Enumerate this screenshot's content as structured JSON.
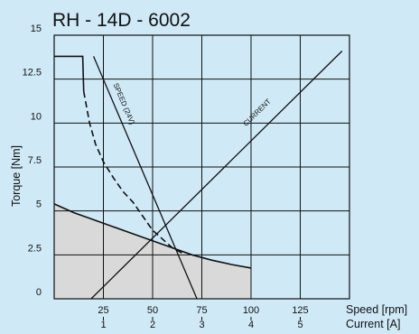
{
  "chart_data": {
    "type": "line",
    "title": "RH - 14D - 6002",
    "ylabel": "Torque [Nm]",
    "xlabel_speed": "Speed [rpm]",
    "xlabel_current": "Current [A]",
    "ylim": [
      0,
      15
    ],
    "speed_axis": {
      "range": [
        0,
        150
      ],
      "ticks": [
        25,
        50,
        75,
        100,
        125
      ]
    },
    "current_axis": {
      "range": [
        0,
        6
      ],
      "ticks": [
        1,
        2,
        3,
        4,
        5
      ]
    },
    "y_ticks": [
      "0",
      "2.5",
      "5",
      "7.5",
      "10",
      "12.5",
      "15"
    ],
    "x_speed_tick_labels": [
      "25",
      "50",
      "75",
      "100",
      "125"
    ],
    "x_current_tick_labels": [
      "1",
      "2",
      "3",
      "4",
      "5"
    ],
    "grid": true,
    "series": [
      {
        "name": "SPEED (24V)",
        "axis": "speed",
        "points": [
          [
            20,
            13.8
          ],
          [
            72.5,
            0
          ]
        ]
      },
      {
        "name": "CURRENT",
        "axis": "current",
        "points": [
          [
            0.75,
            0
          ],
          [
            5.85,
            14.1
          ]
        ]
      },
      {
        "axis": "speed",
        "style": "solid",
        "points": [
          [
            0,
            13.8
          ],
          [
            14.5,
            13.8
          ],
          [
            15,
            11.8
          ]
        ]
      },
      {
        "axis": "speed",
        "style": "dashed",
        "points": [
          [
            15,
            11.8
          ],
          [
            18,
            10
          ],
          [
            21,
            8.8
          ],
          [
            25,
            7.8
          ],
          [
            30,
            6.9
          ],
          [
            35,
            6.1
          ],
          [
            40,
            5.5
          ],
          [
            45,
            4.7
          ],
          [
            50,
            3.9
          ],
          [
            55,
            3.4
          ],
          [
            60,
            2.9
          ],
          [
            65,
            2.6
          ]
        ]
      },
      {
        "axis": "speed",
        "style": "solid",
        "fill": true,
        "points": [
          [
            0,
            5.4
          ],
          [
            10,
            4.9
          ],
          [
            20,
            4.5
          ],
          [
            30,
            4.1
          ],
          [
            40,
            3.7
          ],
          [
            50,
            3.3
          ],
          [
            60,
            2.9
          ],
          [
            70,
            2.5
          ],
          [
            80,
            2.2
          ],
          [
            90,
            1.95
          ],
          [
            100,
            1.75
          ]
        ]
      }
    ],
    "annotations": [
      "SPEED (24V)",
      "CURRENT"
    ]
  }
}
